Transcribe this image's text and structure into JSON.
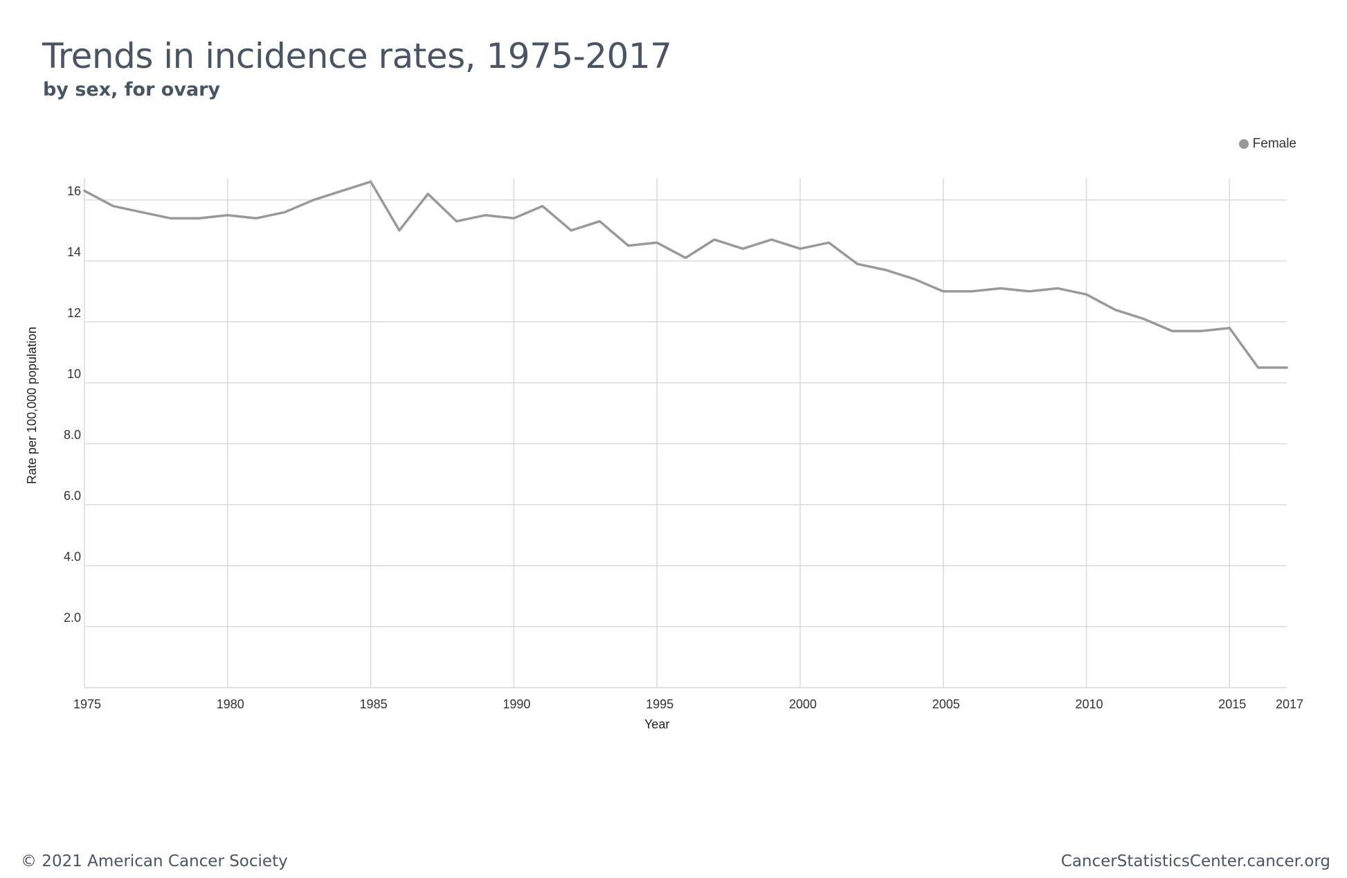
{
  "header": {
    "title": "Trends in incidence rates, 1975-2017",
    "subtitle": "by sex, for ovary"
  },
  "legend": {
    "items": [
      {
        "label": "Female",
        "color": "#999999"
      }
    ]
  },
  "footer": {
    "copyright": "© 2021 American Cancer Society",
    "site": "CancerStatisticsCenter.cancer.org"
  },
  "chart_data": {
    "type": "line",
    "title": "Trends in incidence rates, 1975-2017",
    "subtitle": "by sex, for ovary",
    "xlabel": "Year",
    "ylabel": "Rate per 100,000 population",
    "xlim": [
      1975,
      2017
    ],
    "ylim": [
      0,
      16.7
    ],
    "x_ticks": [
      1975,
      1980,
      1985,
      1990,
      1995,
      2000,
      2005,
      2010,
      2015,
      2017
    ],
    "x_tick_labels": [
      "1975",
      "1980",
      "1985",
      "1990",
      "1995",
      "2000",
      "2005",
      "2010",
      "2015",
      "2017"
    ],
    "y_ticks": [
      2,
      4,
      6,
      8,
      10,
      12,
      14,
      16
    ],
    "y_tick_labels": [
      "2.0",
      "4.0",
      "6.0",
      "8.0",
      "10",
      "12",
      "14",
      "16"
    ],
    "grid": true,
    "legend_position": "top-right",
    "x": [
      1975,
      1976,
      1977,
      1978,
      1979,
      1980,
      1981,
      1982,
      1983,
      1984,
      1985,
      1986,
      1987,
      1988,
      1989,
      1990,
      1991,
      1992,
      1993,
      1994,
      1995,
      1996,
      1997,
      1998,
      1999,
      2000,
      2001,
      2002,
      2003,
      2004,
      2005,
      2006,
      2007,
      2008,
      2009,
      2010,
      2011,
      2012,
      2013,
      2014,
      2015,
      2016,
      2017
    ],
    "series": [
      {
        "name": "Female",
        "color": "#999999",
        "values": [
          16.3,
          15.8,
          15.6,
          15.4,
          15.4,
          15.5,
          15.4,
          15.6,
          16.0,
          16.3,
          16.6,
          15.0,
          16.2,
          15.3,
          15.5,
          15.4,
          15.8,
          15.0,
          15.3,
          14.5,
          14.6,
          14.1,
          14.7,
          14.4,
          14.7,
          14.4,
          14.6,
          13.9,
          13.7,
          13.4,
          13.0,
          13.0,
          13.1,
          13.0,
          13.1,
          12.9,
          12.4,
          12.1,
          11.7,
          11.7,
          11.8,
          10.5,
          10.5
        ]
      }
    ]
  }
}
